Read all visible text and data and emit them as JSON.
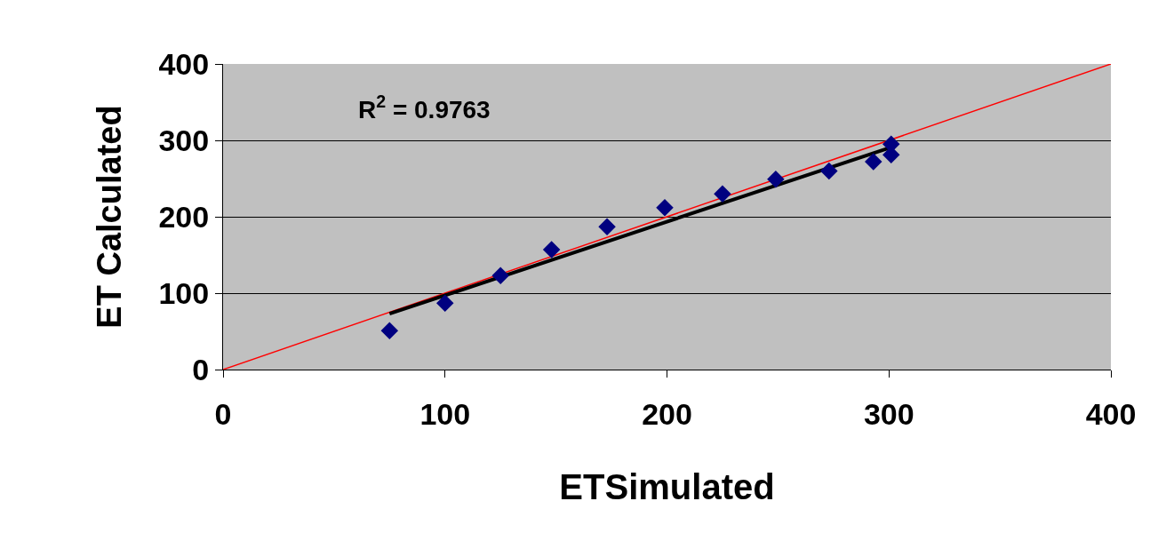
{
  "chart_data": {
    "type": "scatter",
    "xlabel": "ETSimulated",
    "ylabel": "ET Calculated",
    "annotations": [
      "R$^{2}$ = 0.9763"
    ],
    "series": [
      {
        "type": "line",
        "color": "#ff0000",
        "x": [
          0,
          400
        ],
        "values": [
          0,
          400
        ],
        "marker": "none"
      },
      {
        "type": "line",
        "color": "#000000",
        "x": [
          75,
          300
        ],
        "values": [
          73,
          290
        ],
        "marker": "none"
      },
      {
        "color": "#000080",
        "marker": "diamond",
        "x": [
          75,
          100,
          125,
          148,
          173,
          199,
          225,
          249,
          273,
          293,
          301,
          301
        ],
        "values": [
          51,
          87,
          123,
          157,
          187,
          212,
          230,
          249,
          260,
          272,
          295,
          281
        ]
      }
    ],
    "xlim": [
      0,
      400
    ],
    "xticks": [
      0,
      100,
      200,
      300,
      400
    ],
    "ylim": [
      0,
      400
    ],
    "yticks": [
      0,
      100,
      200,
      300,
      400
    ],
    "grid": "y"
  }
}
